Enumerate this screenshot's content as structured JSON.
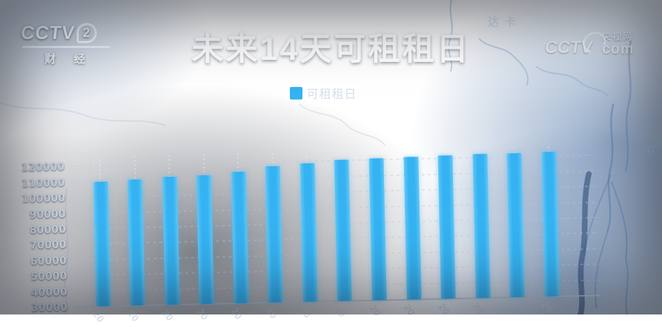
{
  "channel_logo": {
    "brand": "CCTV",
    "channel_number": "2",
    "channel_name": "财经"
  },
  "watermark": {
    "brand": "CCTV",
    "site": "央视网",
    "domain": "com"
  },
  "map": {
    "labels": [
      "达卡"
    ]
  },
  "colors": {
    "bar": "#35b2f1",
    "bar_edge": "#5fc7f7",
    "background_navy": "#12203e",
    "grid": "rgba(186,199,219,0.42)"
  },
  "chart_data": {
    "type": "bar",
    "title": "未来14天可租租日",
    "legend": [
      {
        "label": "可租租日",
        "color": "#35b2f1"
      }
    ],
    "legend_position": "top-center",
    "grid": "dashed horizontal",
    "ylim": [
      30000,
      129000
    ],
    "yticks": [
      30000,
      40000,
      50000,
      60000,
      70000,
      80000,
      90000,
      100000,
      110000,
      120000
    ],
    "categories": [
      "20",
      "20",
      "20",
      "20",
      "20",
      "20",
      "20",
      "20",
      "20",
      "20",
      "20",
      "20",
      "20",
      "20"
    ],
    "categories_note": "x tick labels are rotated dates clipped at the screen edge; only the leading characters are visible",
    "values": [
      110000,
      111000,
      112000,
      112500,
      114500,
      117500,
      119000,
      120500,
      121000,
      121500,
      122000,
      122500,
      122500,
      123000
    ]
  }
}
